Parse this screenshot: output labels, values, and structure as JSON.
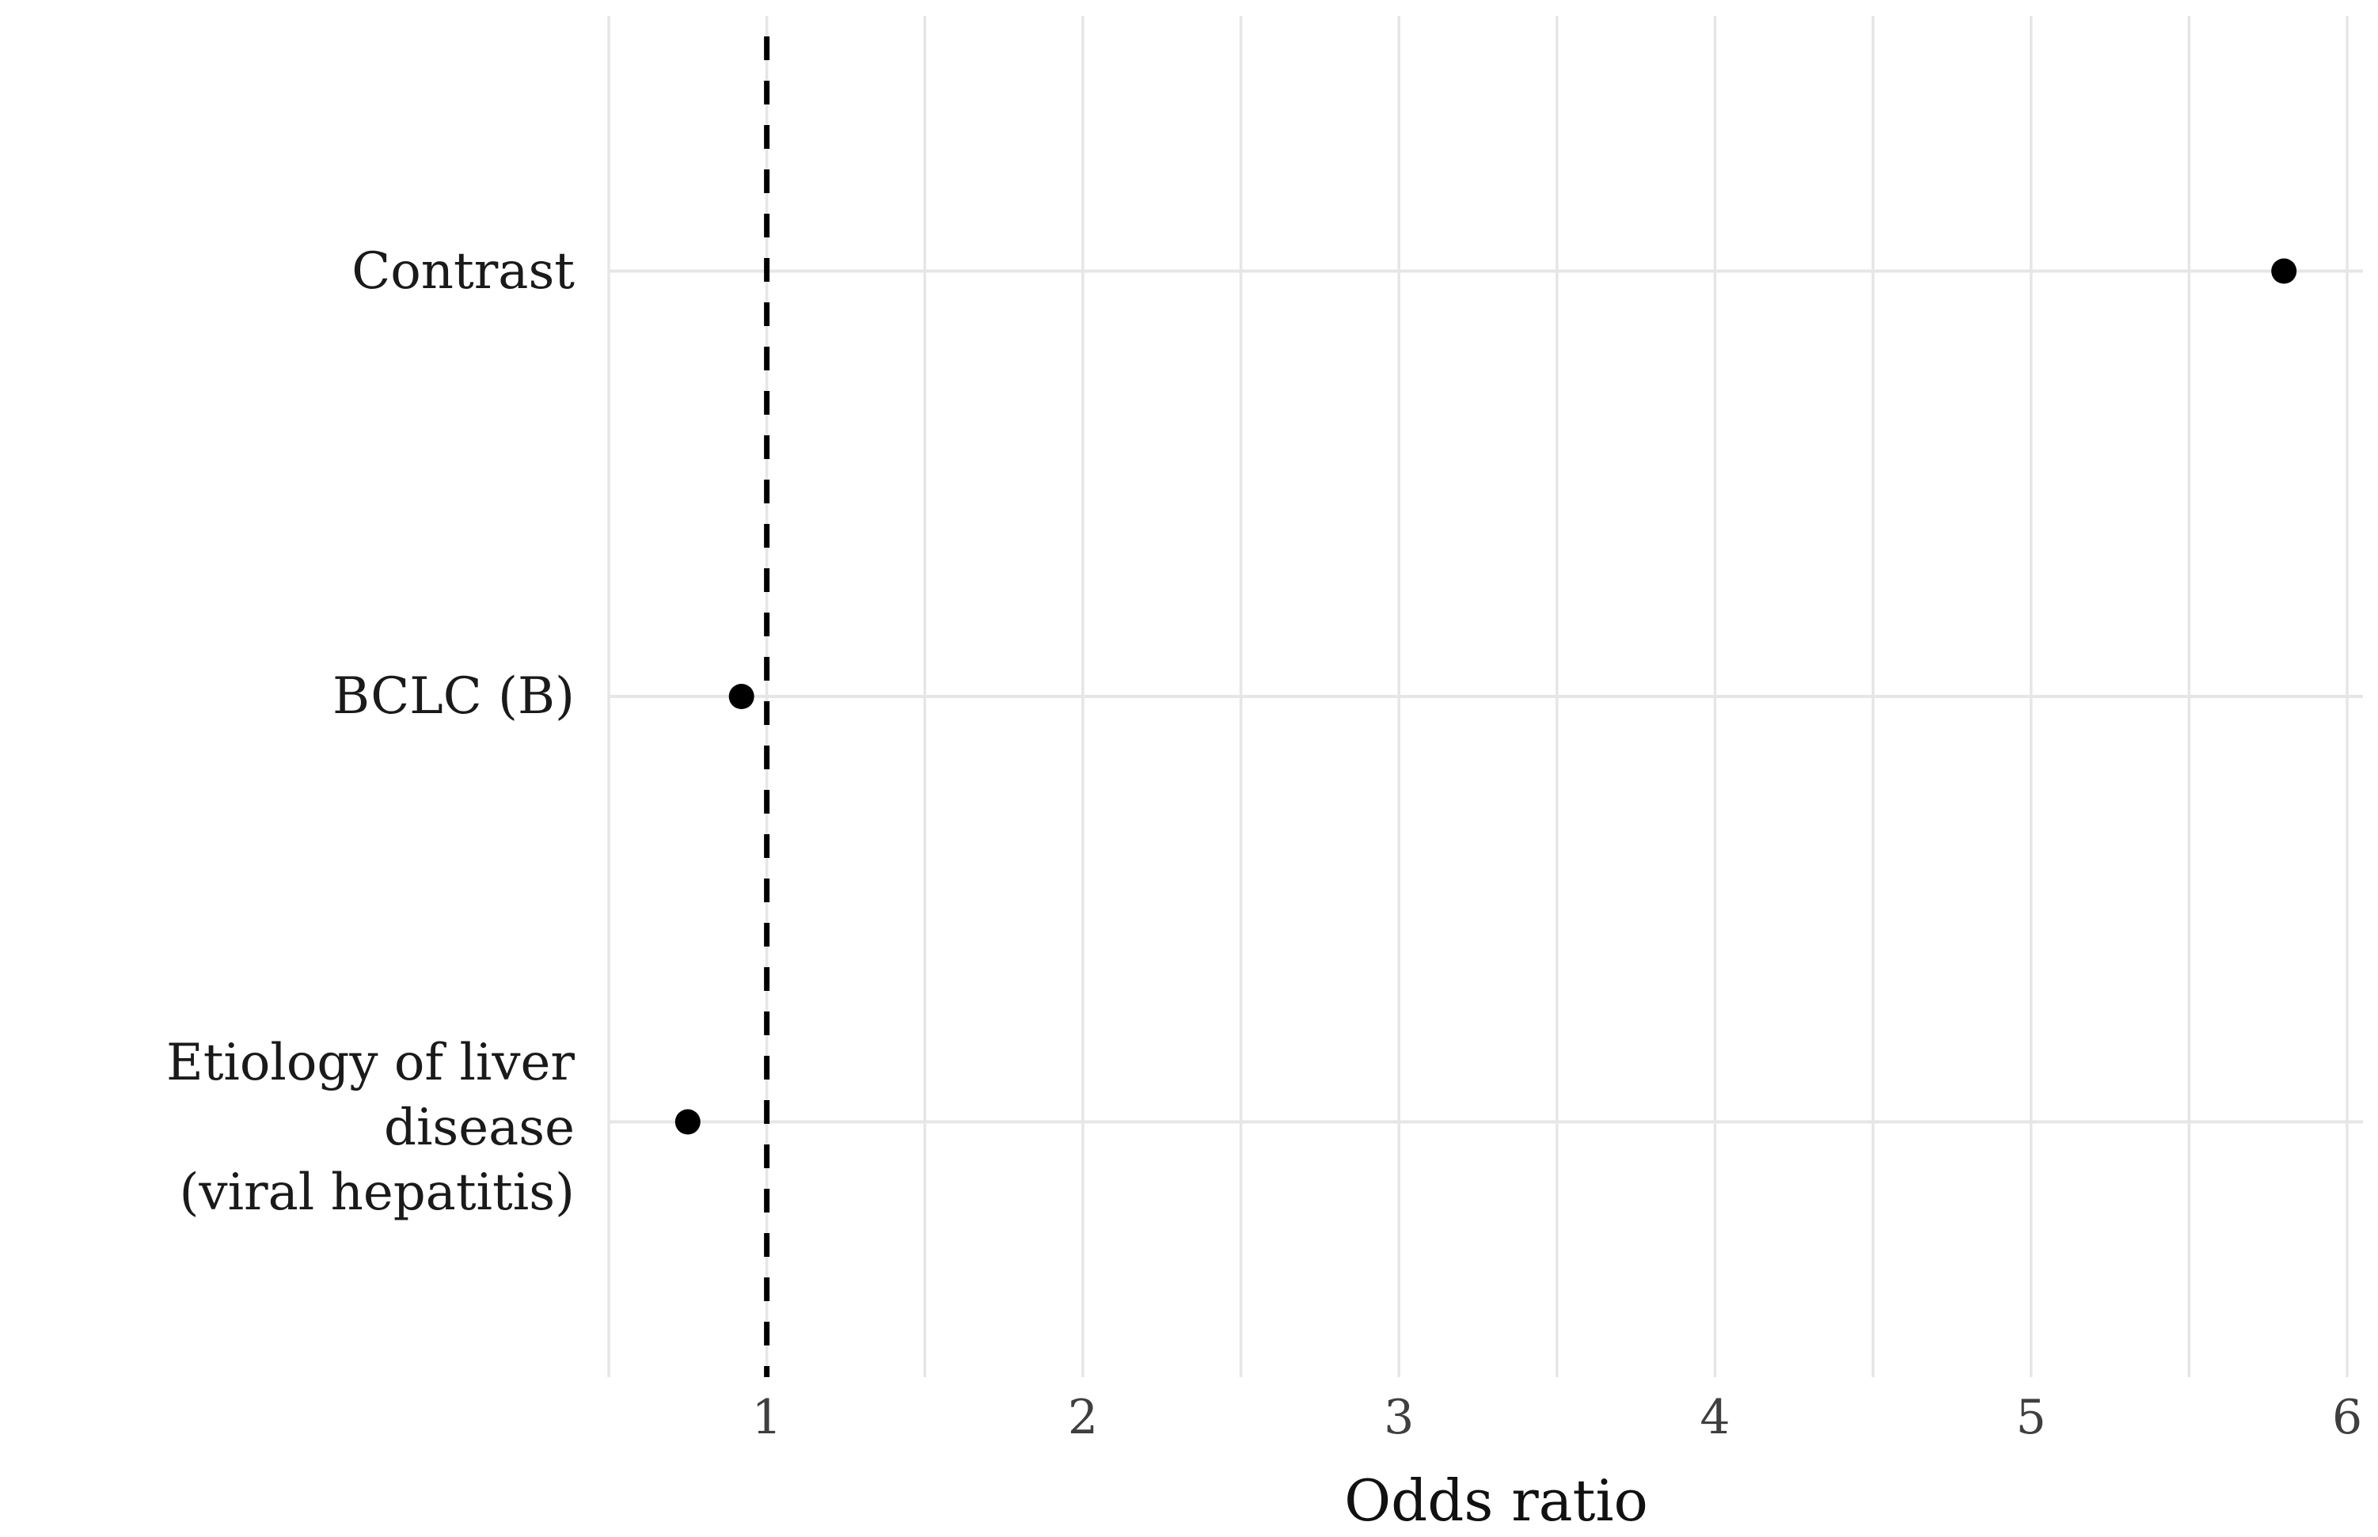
{
  "chart_data": {
    "type": "scatter",
    "subtype": "horizontal-dot-forest-plot",
    "title": "",
    "xlabel": "Odds ratio",
    "ylabel": "",
    "categories": [
      "Contrast",
      "BCLC (B)",
      "Etiology of liver disease\n(viral hepatitis)"
    ],
    "values": [
      5.8,
      0.92,
      0.75
    ],
    "x_ticks": [
      1,
      2,
      3,
      4,
      5,
      6
    ],
    "x_minor_step": 0.5,
    "xlim": [
      0.5,
      6.05
    ],
    "reference_line_x": 1,
    "reference_line_style": "dashed",
    "grid": "vertical every 0.5 units; one horizontal gridline per category row",
    "legend_position": "none",
    "colors": {
      "background": "#ffffff",
      "gridline": "#e6e6e6",
      "point": "#000000",
      "reference_line": "#000000",
      "tick_text": "#3f3f3f",
      "category_text": "#1a1a1a",
      "axis_title_text": "#111111"
    }
  }
}
